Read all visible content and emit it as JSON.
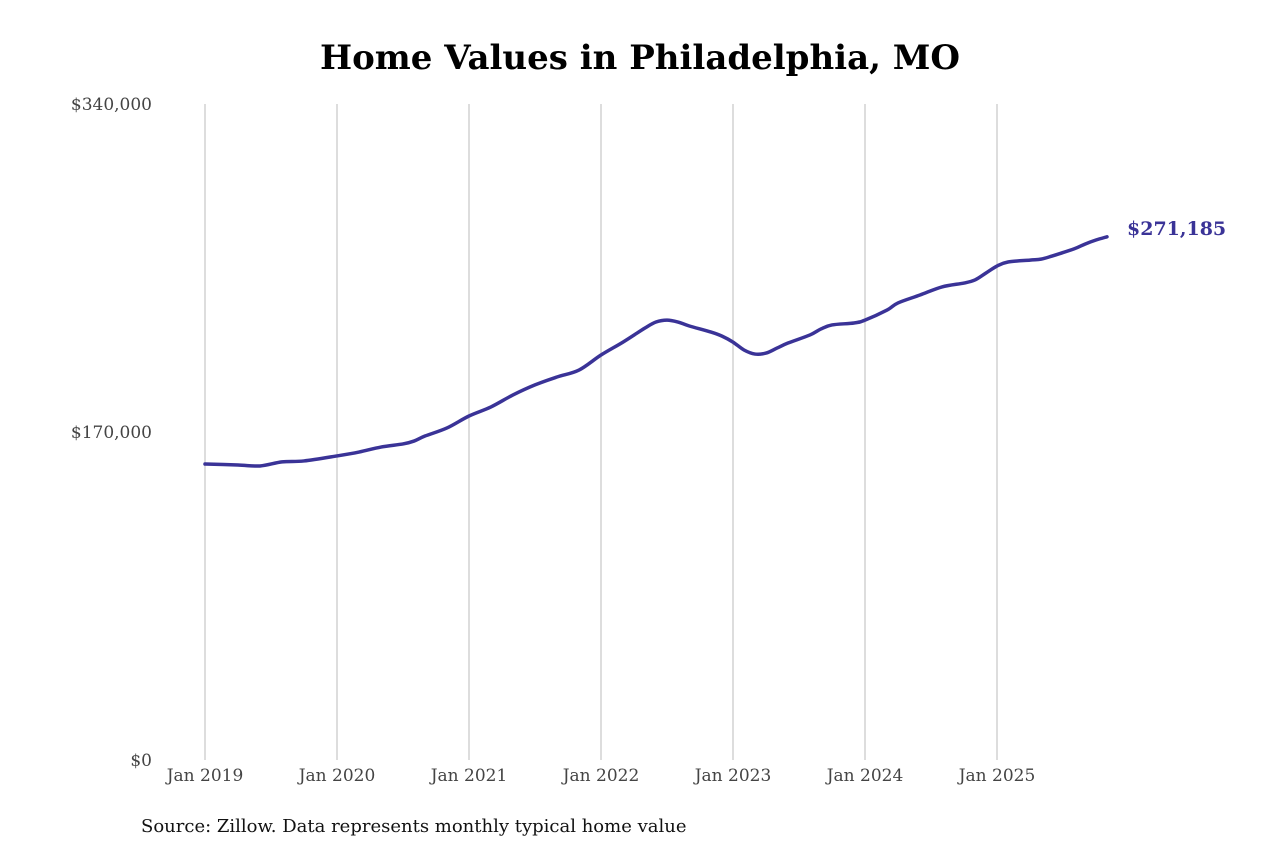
{
  "chart_data": {
    "type": "line",
    "title": "Home Values in Philadelphia, MO",
    "source": "Source: Zillow. Data represents monthly typical home value",
    "xlabel": "",
    "ylabel": "",
    "ylim": [
      0,
      340000
    ],
    "yticks": [
      0,
      170000,
      340000
    ],
    "ytick_labels": [
      "$0",
      "$170,000",
      "$340,000"
    ],
    "xtick_labels": [
      "Jan 2019",
      "Jan 2020",
      "Jan 2021",
      "Jan 2022",
      "Jan 2023",
      "Jan 2024",
      "Jan 2025"
    ],
    "grid": "vertical at year ticks",
    "line_color": "#3a3397",
    "end_label": "$271,185",
    "series": [
      {
        "points": [
          [
            "2019-01",
            153400
          ],
          [
            "2019-04",
            152900
          ],
          [
            "2019-06",
            152400
          ],
          [
            "2019-08",
            154500
          ],
          [
            "2019-10",
            155000
          ],
          [
            "2020-01",
            157600
          ],
          [
            "2020-03",
            159600
          ],
          [
            "2020-05",
            162200
          ],
          [
            "2020-07",
            163800
          ],
          [
            "2020-08",
            165300
          ],
          [
            "2020-09",
            167900
          ],
          [
            "2020-11",
            172100
          ],
          [
            "2021-01",
            178300
          ],
          [
            "2021-03",
            183000
          ],
          [
            "2021-05",
            189200
          ],
          [
            "2021-07",
            194400
          ],
          [
            "2021-09",
            198500
          ],
          [
            "2021-11",
            202100
          ],
          [
            "2022-01",
            209900
          ],
          [
            "2022-03",
            216600
          ],
          [
            "2022-05",
            223900
          ],
          [
            "2022-06",
            227000
          ],
          [
            "2022-07",
            228000
          ],
          [
            "2022-08",
            227000
          ],
          [
            "2022-09",
            225000
          ],
          [
            "2022-11",
            221800
          ],
          [
            "2022-12",
            219700
          ],
          [
            "2023-01",
            216600
          ],
          [
            "2023-02",
            212500
          ],
          [
            "2023-03",
            210400
          ],
          [
            "2023-04",
            210900
          ],
          [
            "2023-05",
            213500
          ],
          [
            "2023-06",
            216100
          ],
          [
            "2023-08",
            220300
          ],
          [
            "2023-09",
            223400
          ],
          [
            "2023-10",
            225500
          ],
          [
            "2023-12",
            226500
          ],
          [
            "2024-01",
            228000
          ],
          [
            "2024-03",
            233200
          ],
          [
            "2024-04",
            236900
          ],
          [
            "2024-06",
            241000
          ],
          [
            "2024-08",
            245200
          ],
          [
            "2024-10",
            247200
          ],
          [
            "2024-11",
            248800
          ],
          [
            "2024-12",
            252400
          ],
          [
            "2025-01",
            256000
          ],
          [
            "2025-02",
            258100
          ],
          [
            "2025-04",
            259100
          ],
          [
            "2025-05",
            259600
          ],
          [
            "2025-06",
            261200
          ],
          [
            "2025-08",
            264900
          ],
          [
            "2025-09",
            267400
          ],
          [
            "2025-10",
            269500
          ],
          [
            "2025-11",
            271185
          ]
        ]
      }
    ]
  }
}
